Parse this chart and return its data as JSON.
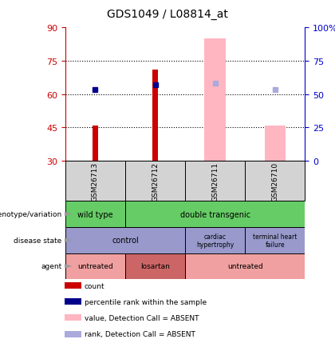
{
  "title": "GDS1049 / L08814_at",
  "samples": [
    "GSM26713",
    "GSM26712",
    "GSM26711",
    "GSM26710"
  ],
  "ylim_left": [
    30,
    90
  ],
  "ylim_right": [
    0,
    100
  ],
  "yticks_left": [
    30,
    45,
    60,
    75,
    90
  ],
  "yticks_right": [
    0,
    25,
    50,
    75,
    100
  ],
  "bar_dark_red": [
    46,
    71,
    null,
    null
  ],
  "bar_pink": [
    null,
    null,
    85,
    46
  ],
  "dot_dark_blue": [
    62,
    64,
    null,
    null
  ],
  "dot_light_blue": [
    null,
    null,
    65,
    62
  ],
  "left_axis_color": "#CC0000",
  "right_axis_color": "#0000CC",
  "sample_bg_color": "#d3d3d3",
  "chart_bg_color": "#ffffff",
  "geno_colors": [
    "#66CC66",
    "#66CC66"
  ],
  "disease_color": "#9999CC",
  "agent_light_color": "#F0A0A0",
  "agent_dark_color": "#CC6666",
  "legend_colors": [
    "#CC0000",
    "#00008B",
    "#FFB6C1",
    "#AAAADD"
  ],
  "legend_labels": [
    "count",
    "percentile rank within the sample",
    "value, Detection Call = ABSENT",
    "rank, Detection Call = ABSENT"
  ]
}
